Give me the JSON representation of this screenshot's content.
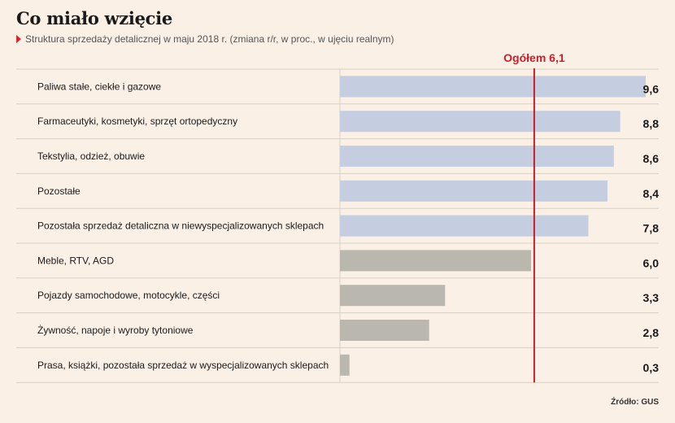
{
  "header": {
    "title": "Co miało wzięcie",
    "subtitle": "Struktura sprzedaży detalicznej w maju 2018 r. (zmiana r/r, w proc., w ujęciu realnym)"
  },
  "footer": {
    "source": "Źródło: GUS"
  },
  "chart_data": {
    "type": "bar",
    "orientation": "horizontal",
    "title": "Co miało wzięcie",
    "subtitle": "Struktura sprzedaży detalicznej w maju 2018 r. (zmiana r/r, w proc., w ujęciu realnym)",
    "categories": [
      "Paliwa stałe, ciekłe i gazowe",
      "Farmaceutyki, kosmetyki, sprzęt ortopedyczny",
      "Tekstylia, odzież, obuwie",
      "Pozostałe",
      "Pozostała sprzedaż detaliczna w niewyspecjalizowanych sklepach",
      "Meble, RTV, AGD",
      "Pojazdy samochodowe, motocykle, części",
      "Żywność, napoje i wyroby tytoniowe",
      "Prasa, książki, pozostała sprzedaż w wyspecjalizowanych sklepach"
    ],
    "values": [
      9.6,
      8.8,
      8.6,
      8.4,
      7.8,
      6.0,
      3.3,
      2.8,
      0.3
    ],
    "value_labels": [
      "9,6",
      "8,8",
      "8,6",
      "8,4",
      "7,8",
      "6,0",
      "3,3",
      "2,8",
      "0,3"
    ],
    "reference_line": {
      "value": 6.1,
      "label": "Ogółem 6,1",
      "color": "#c8202a"
    },
    "xlim": [
      0,
      9.6
    ],
    "colors": {
      "above_total": "#c5cde0",
      "below_total": "#bab8ae"
    },
    "grid": false,
    "legend": "none"
  }
}
